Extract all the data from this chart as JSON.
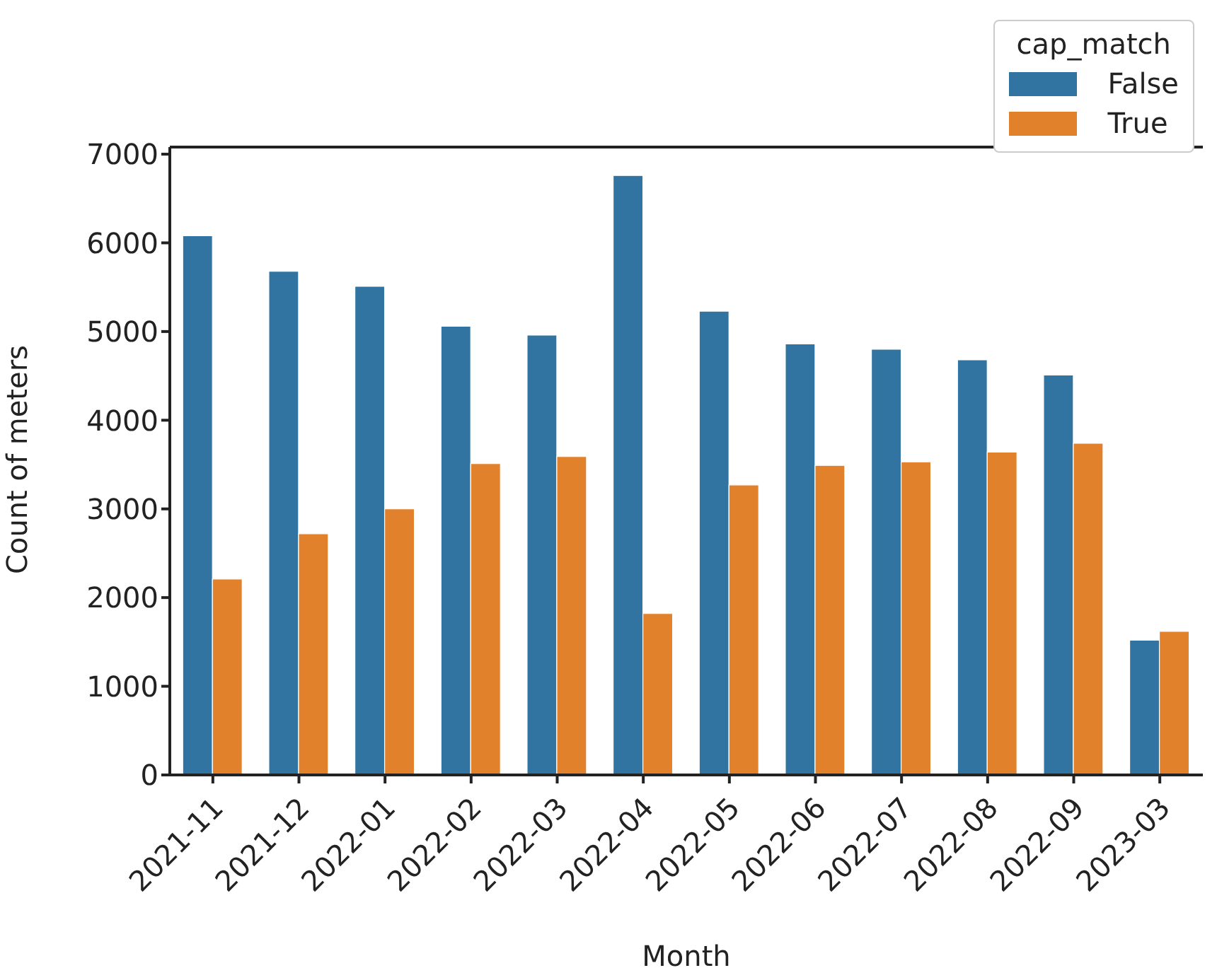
{
  "chart_data": {
    "type": "bar",
    "xlabel": "Month",
    "ylabel": "Count of meters",
    "legend_title": "cap_match",
    "legend": "top right",
    "grid": false,
    "categories": [
      "2021-11",
      "2021-12",
      "2022-01",
      "2022-02",
      "2022-03",
      "2022-04",
      "2022-05",
      "2022-06",
      "2022-07",
      "2022-08",
      "2022-09",
      "2023-03"
    ],
    "series": [
      {
        "name": "False",
        "color": "#3274a1",
        "values": [
          6080,
          5680,
          5510,
          5060,
          4960,
          6760,
          5230,
          4860,
          4800,
          4680,
          4510,
          1520
        ]
      },
      {
        "name": "True",
        "color": "#e1812c",
        "values": [
          2210,
          2720,
          3000,
          3510,
          3590,
          1820,
          3270,
          3490,
          3530,
          3640,
          3740,
          1620
        ]
      }
    ],
    "ylim": [
      0,
      7080
    ],
    "yticks": [
      0,
      1000,
      2000,
      3000,
      4000,
      5000,
      6000,
      7000
    ]
  }
}
